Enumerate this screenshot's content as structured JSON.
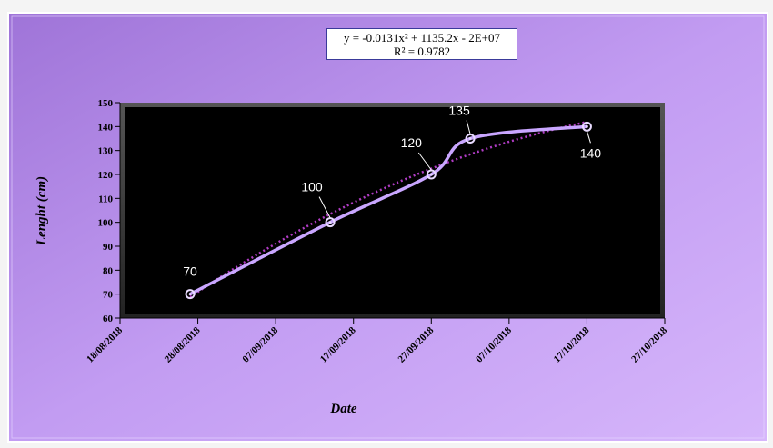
{
  "chart_data": {
    "type": "line",
    "xlabel": "Date",
    "ylabel": "Lenght (cm)",
    "x_ticks": [
      "18/08/2018",
      "28/08/2018",
      "07/09/2018",
      "17/09/2018",
      "27/09/2018",
      "07/10/2018",
      "17/10/2018",
      "27/10/2018"
    ],
    "xlim": [
      "18/08/2018",
      "27/10/2018"
    ],
    "ylim": [
      60,
      150
    ],
    "y_ticks": [
      60,
      70,
      80,
      90,
      100,
      110,
      120,
      130,
      140,
      150
    ],
    "series": [
      {
        "points": [
          {
            "x": "27/08/2018",
            "y": 70,
            "label": "70"
          },
          {
            "x": "14/09/2018",
            "y": 100,
            "label": "100"
          },
          {
            "x": "27/09/2018",
            "y": 120,
            "label": "120"
          },
          {
            "x": "02/10/2018",
            "y": 135,
            "label": "135"
          },
          {
            "x": "17/10/2018",
            "y": 140,
            "label": "140"
          }
        ],
        "color": "#c9a6ff"
      }
    ],
    "trendline": {
      "type": "polynomial-2",
      "equation": "y = -0.0131x² + 1135.2x - 2E+07",
      "r2": "R² = 0.9782",
      "color": "#b03cc4"
    },
    "legend": "none",
    "grid": false,
    "colors": {
      "plot_bg": "#000000",
      "chart_bg": "#b98af0"
    }
  }
}
